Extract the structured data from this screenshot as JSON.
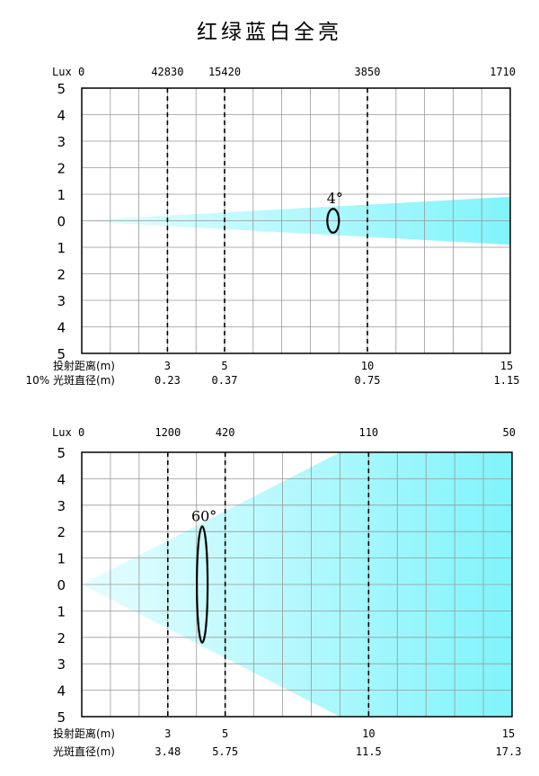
{
  "title": "红绿蓝白全亮",
  "colors": {
    "beam_light": "#e6fdff",
    "beam_dark": "#80f4fb",
    "grid": "#999999",
    "frame": "#000000"
  },
  "chart_data": [
    {
      "type": "area",
      "title": "",
      "beam_angle_label": "4°",
      "lux_axis_label": "Lux",
      "lux_ticks": [
        {
          "x": 0,
          "label": "0"
        },
        {
          "x": 3,
          "label": "42830"
        },
        {
          "x": 5,
          "label": "15420"
        },
        {
          "x": 10,
          "label": "3850"
        },
        {
          "x": 15,
          "label": "1710"
        }
      ],
      "distance_label": "投射距离(m)",
      "distance_ticks": [
        {
          "x": 3,
          "label": "3"
        },
        {
          "x": 5,
          "label": "5"
        },
        {
          "x": 10,
          "label": "10"
        },
        {
          "x": 15,
          "label": "15"
        }
      ],
      "diameter_label": "10% 光斑直径(m)",
      "diameter_ticks": [
        {
          "x": 3,
          "label": "0.23"
        },
        {
          "x": 5,
          "label": "0.37"
        },
        {
          "x": 10,
          "label": "0.75"
        },
        {
          "x": 15,
          "label": "1.15"
        }
      ],
      "y_tick_labels": [
        "5",
        "4",
        "3",
        "2",
        "1",
        "0",
        "1",
        "2",
        "3",
        "4",
        "5"
      ],
      "xlim": [
        0,
        15
      ],
      "ylim": [
        -5,
        5
      ],
      "dashed_lines_x": [
        3,
        5,
        10
      ],
      "beam_half_width_at_max": 0.9,
      "beam_half_width_at_min": 0,
      "marker": {
        "x": 8.8,
        "half_height": 0.45
      },
      "grid": true
    },
    {
      "type": "area",
      "title": "",
      "beam_angle_label": "60°",
      "lux_axis_label": "Lux",
      "lux_ticks": [
        {
          "x": 0,
          "label": "0"
        },
        {
          "x": 3,
          "label": "1200"
        },
        {
          "x": 5,
          "label": "420"
        },
        {
          "x": 10,
          "label": "110"
        },
        {
          "x": 15,
          "label": "50"
        }
      ],
      "distance_label": "投射距离(m)",
      "distance_ticks": [
        {
          "x": 3,
          "label": "3"
        },
        {
          "x": 5,
          "label": "5"
        },
        {
          "x": 10,
          "label": "10"
        },
        {
          "x": 15,
          "label": "15"
        }
      ],
      "diameter_label": "光斑直径(m)",
      "diameter_ticks": [
        {
          "x": 3,
          "label": "3.48"
        },
        {
          "x": 5,
          "label": "5.75"
        },
        {
          "x": 10,
          "label": "11.5"
        },
        {
          "x": 15,
          "label": "17.3"
        }
      ],
      "y_tick_labels": [
        "5",
        "4",
        "3",
        "2",
        "1",
        "0",
        "1",
        "2",
        "3",
        "4",
        "5"
      ],
      "xlim": [
        0,
        15
      ],
      "ylim": [
        -5,
        5
      ],
      "dashed_lines_x": [
        3,
        5,
        10
      ],
      "beam_half_width_at_max": 5,
      "beam_reaches_edge_at_x": 9,
      "marker": {
        "x": 4.2,
        "half_height": 2.2
      },
      "grid": true
    }
  ]
}
